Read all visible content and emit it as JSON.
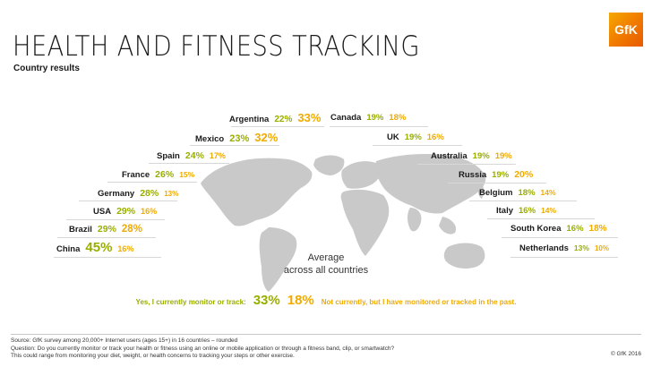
{
  "title": "HEALTH AND FITNESS TRACKING",
  "subtitle": "Country results",
  "logo_text": "GfK",
  "average": {
    "line1": "Average",
    "line2": "across all countries",
    "current_label": "Yes, I currently monitor or track:",
    "current_value": "33%",
    "past_value": "18%",
    "past_label": "Not currently, but I have monitored or tracked in the past."
  },
  "footnote": {
    "line1": "Source: GfK survey among 20,000+ Internet users (ages 15+) in 16 countries – rounded",
    "line2": "Question: Do you currently monitor or track your health or fitness using an online or mobile application or through a fitness band, clip, or smartwatch?",
    "line3": "This could range from monitoring your diet, weight, or health concerns to tracking your steps or other exercise.",
    "copyright": "© GfK 2016"
  },
  "colors": {
    "current": "#9aae00",
    "past": "#f0ab00",
    "map": "#c9c9c9"
  },
  "chart_data": {
    "type": "table",
    "title": "HEALTH AND FITNESS TRACKING",
    "subtitle": "Country results",
    "series": [
      {
        "name": "Yes, I currently monitor or track",
        "color": "#9aae00"
      },
      {
        "name": "Not currently, but I have monitored or tracked in the past",
        "color": "#f0ab00"
      }
    ],
    "countries": [
      {
        "name": "Argentina",
        "current": 22,
        "past": 33,
        "side": "left"
      },
      {
        "name": "Mexico",
        "current": 23,
        "past": 32,
        "side": "left"
      },
      {
        "name": "Spain",
        "current": 24,
        "past": 17,
        "side": "left"
      },
      {
        "name": "France",
        "current": 26,
        "past": 15,
        "side": "left"
      },
      {
        "name": "Germany",
        "current": 28,
        "past": 13,
        "side": "left"
      },
      {
        "name": "USA",
        "current": 29,
        "past": 16,
        "side": "left"
      },
      {
        "name": "Brazil",
        "current": 29,
        "past": 28,
        "side": "left"
      },
      {
        "name": "China",
        "current": 45,
        "past": 16,
        "side": "left"
      },
      {
        "name": "Canada",
        "current": 19,
        "past": 18,
        "side": "right"
      },
      {
        "name": "UK",
        "current": 19,
        "past": 16,
        "side": "right"
      },
      {
        "name": "Australia",
        "current": 19,
        "past": 19,
        "side": "right"
      },
      {
        "name": "Russia",
        "current": 19,
        "past": 20,
        "side": "right"
      },
      {
        "name": "Belgium",
        "current": 18,
        "past": 14,
        "side": "right"
      },
      {
        "name": "Italy",
        "current": 16,
        "past": 14,
        "side": "right"
      },
      {
        "name": "South Korea",
        "current": 16,
        "past": 18,
        "side": "right"
      },
      {
        "name": "Netherlands",
        "current": 13,
        "past": 10,
        "side": "right"
      }
    ],
    "average": {
      "current": 33,
      "past": 18
    },
    "unit": "%"
  }
}
